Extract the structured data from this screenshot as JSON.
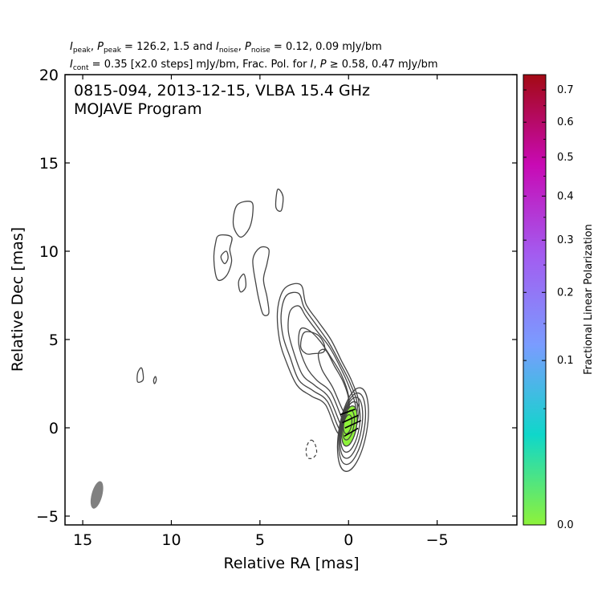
{
  "header": {
    "line1": [
      {
        "t": "I",
        "i": true
      },
      {
        "t": "peak",
        "sub": true
      },
      {
        "t": ", "
      },
      {
        "t": "P",
        "i": true
      },
      {
        "t": "peak",
        "sub": true
      },
      {
        "t": " = 126.2, 1.5 and "
      },
      {
        "t": "I",
        "i": true
      },
      {
        "t": "noise",
        "sub": true
      },
      {
        "t": ", "
      },
      {
        "t": "P",
        "i": true
      },
      {
        "t": "noise",
        "sub": true
      },
      {
        "t": " = 0.12, 0.09 mJy/bm"
      }
    ],
    "line2": [
      {
        "t": "I",
        "i": true
      },
      {
        "t": "cont",
        "sub": true
      },
      {
        "t": " = 0.35 [x2.0 steps] mJy/bm, Frac. Pol. for "
      },
      {
        "t": "I",
        "i": true
      },
      {
        "t": ", "
      },
      {
        "t": "P",
        "i": true
      },
      {
        "t": " ≥  0.58, 0.47 mJy/bm"
      }
    ]
  },
  "chart_data": {
    "type": "contour",
    "annotation_lines": [
      "0815-094, 2013-12-15, VLBA 15.4 GHz",
      "MOJAVE Program"
    ],
    "xlabel": "Relative RA [mas]",
    "ylabel": "Relative Dec [mas]",
    "xlim": [
      16,
      -9.5
    ],
    "ylim": [
      -5.5,
      20
    ],
    "xticks": [
      15,
      10,
      5,
      0,
      -5
    ],
    "xtick_labels": [
      "15",
      "10",
      "5",
      "0",
      "−5"
    ],
    "yticks": [
      -5,
      0,
      5,
      10,
      15,
      20
    ],
    "ytick_labels": [
      "−5",
      "0",
      "5",
      "10",
      "15",
      "20"
    ],
    "core": {
      "x": 0,
      "y": 0
    },
    "core_contours": [
      {
        "x": 0.05,
        "y": 0.2,
        "a": 0.22,
        "b": 0.55
      },
      {
        "x": 0.0,
        "y": 0.15,
        "a": 0.3,
        "b": 0.85
      },
      {
        "x": -0.05,
        "y": 0.1,
        "a": 0.4,
        "b": 1.15
      },
      {
        "x": -0.1,
        "y": 0.05,
        "a": 0.5,
        "b": 1.45
      },
      {
        "x": -0.15,
        "y": 0.0,
        "a": 0.58,
        "b": 1.75
      },
      {
        "x": -0.2,
        "y": -0.05,
        "a": 0.68,
        "b": 2.05
      },
      {
        "x": -0.25,
        "y": -0.1,
        "a": 0.78,
        "b": 2.4
      }
    ],
    "jet_contours": [
      [
        [
          0.6,
          -0.3
        ],
        [
          1.3,
          1.3
        ],
        [
          2.1,
          1.8
        ],
        [
          2.9,
          2.4
        ],
        [
          3.5,
          3.7
        ],
        [
          3.9,
          5.0
        ],
        [
          4.0,
          6.7
        ],
        [
          3.6,
          7.9
        ],
        [
          2.7,
          8.1
        ],
        [
          2.4,
          7.0
        ],
        [
          1.7,
          6.0
        ],
        [
          1.0,
          5.0
        ],
        [
          0.4,
          3.8
        ],
        [
          -0.2,
          2.6
        ],
        [
          -0.6,
          1.2
        ],
        [
          -0.2,
          -0.5
        ]
      ],
      [
        [
          0.5,
          -0.1
        ],
        [
          1.2,
          1.5
        ],
        [
          2.0,
          2.1
        ],
        [
          2.8,
          2.7
        ],
        [
          3.3,
          4.0
        ],
        [
          3.7,
          5.2
        ],
        [
          3.8,
          6.5
        ],
        [
          3.5,
          7.5
        ],
        [
          2.8,
          7.6
        ],
        [
          2.5,
          6.8
        ],
        [
          1.8,
          5.8
        ],
        [
          1.1,
          4.8
        ],
        [
          0.5,
          3.7
        ],
        [
          -0.1,
          2.5
        ],
        [
          -0.5,
          1.2
        ],
        [
          -0.1,
          -0.3
        ]
      ],
      [
        [
          0.4,
          0.1
        ],
        [
          1.1,
          1.7
        ],
        [
          1.9,
          2.4
        ],
        [
          2.6,
          3.0
        ],
        [
          3.1,
          4.3
        ],
        [
          3.4,
          5.5
        ],
        [
          3.3,
          6.6
        ],
        [
          2.8,
          6.9
        ],
        [
          2.4,
          6.3
        ],
        [
          1.8,
          5.5
        ],
        [
          1.1,
          4.6
        ],
        [
          0.5,
          3.5
        ],
        [
          0.0,
          2.4
        ],
        [
          -0.4,
          1.1
        ],
        [
          0.0,
          -0.1
        ]
      ],
      [
        [
          0.3,
          0.4
        ],
        [
          1.0,
          2.0
        ],
        [
          1.8,
          2.7
        ],
        [
          2.4,
          3.5
        ],
        [
          2.8,
          4.7
        ],
        [
          2.7,
          5.6
        ],
        [
          2.2,
          5.5
        ],
        [
          1.6,
          4.9
        ],
        [
          1.0,
          4.0
        ],
        [
          0.4,
          3.0
        ],
        [
          0.0,
          1.8
        ],
        [
          0.0,
          0.5
        ]
      ],
      [
        [
          0.2,
          0.8
        ],
        [
          0.9,
          2.3
        ],
        [
          1.5,
          3.3
        ],
        [
          1.7,
          4.2
        ],
        [
          1.3,
          4.4
        ],
        [
          0.8,
          3.5
        ],
        [
          0.3,
          2.6
        ],
        [
          0.0,
          1.6
        ]
      ]
    ],
    "inner_blob": [
      [
        2.7,
        4.6
      ],
      [
        2.5,
        5.4
      ],
      [
        1.8,
        5.3
      ],
      [
        1.4,
        4.8
      ],
      [
        1.4,
        4.3
      ],
      [
        2.0,
        4.2
      ],
      [
        2.4,
        4.2
      ]
    ],
    "islands": [
      [
        [
          6.5,
          11.5
        ],
        [
          6.3,
          12.6
        ],
        [
          5.5,
          12.8
        ],
        [
          5.4,
          12.2
        ],
        [
          5.6,
          11.3
        ],
        [
          6.1,
          10.8
        ]
      ],
      [
        [
          4.0,
          13.5
        ],
        [
          3.7,
          13.1
        ],
        [
          3.8,
          12.3
        ],
        [
          4.1,
          12.5
        ]
      ],
      [
        [
          7.3,
          10.9
        ],
        [
          6.6,
          10.8
        ],
        [
          6.7,
          10.1
        ],
        [
          6.6,
          9.4
        ],
        [
          6.9,
          8.6
        ],
        [
          7.4,
          8.4
        ],
        [
          7.6,
          9.5
        ],
        [
          7.5,
          10.5
        ]
      ],
      [
        [
          5.0,
          10.2
        ],
        [
          5.4,
          9.5
        ],
        [
          5.2,
          8.0
        ],
        [
          5.0,
          7.0
        ],
        [
          4.8,
          6.4
        ],
        [
          4.5,
          6.5
        ],
        [
          4.6,
          7.4
        ],
        [
          4.8,
          8.4
        ],
        [
          4.6,
          9.3
        ],
        [
          4.5,
          10.1
        ]
      ],
      [
        [
          6.9,
          10.0
        ],
        [
          7.2,
          9.7
        ],
        [
          7.0,
          9.3
        ],
        [
          6.8,
          9.6
        ]
      ],
      [
        [
          5.9,
          8.7
        ],
        [
          6.2,
          8.3
        ],
        [
          6.1,
          7.7
        ],
        [
          5.8,
          8.0
        ]
      ],
      [
        [
          11.7,
          3.4
        ],
        [
          11.9,
          3.1
        ],
        [
          11.9,
          2.6
        ],
        [
          11.6,
          2.7
        ],
        [
          11.6,
          3.1
        ]
      ],
      [
        [
          10.9,
          2.9
        ],
        [
          11.0,
          2.7
        ],
        [
          10.95,
          2.5
        ],
        [
          10.85,
          2.7
        ]
      ]
    ],
    "negative_contour": [
      [
        2.1,
        -0.7
      ],
      [
        1.9,
        -0.9
      ],
      [
        1.8,
        -1.4
      ],
      [
        2.0,
        -1.7
      ],
      [
        2.3,
        -1.7
      ],
      [
        2.4,
        -1.3
      ],
      [
        2.3,
        -0.9
      ]
    ],
    "polarization_vectors": [
      {
        "x": 0.05,
        "y": 0.9,
        "angle": 20,
        "len": 0.9
      },
      {
        "x": -0.1,
        "y": 0.5,
        "angle": 25,
        "len": 1.0
      },
      {
        "x": -0.25,
        "y": 0.2,
        "angle": 25,
        "len": 1.0
      },
      {
        "x": -0.15,
        "y": -0.25,
        "angle": 30,
        "len": 0.9
      }
    ],
    "beam": {
      "x": 14.2,
      "y": -3.8,
      "major": 1.6,
      "minor": 0.6,
      "pa": 15
    },
    "colorbar": {
      "label": "Fractional Linear Polarization",
      "range": [
        0,
        0.75
      ],
      "scale": "sqrt",
      "ticks": [
        0.0,
        0.1,
        0.2,
        0.3,
        0.4,
        0.5,
        0.6,
        0.7
      ],
      "tick_labels": [
        "0.0",
        "0.1",
        "0.2",
        "0.3",
        "0.4",
        "0.5",
        "0.6",
        "0.7"
      ],
      "colors": [
        "#8ef23a",
        "#0fd7ca",
        "#7a9cff",
        "#a35cf0",
        "#c80ab4",
        "#a30a14"
      ]
    },
    "fill_color": "#8ef23a",
    "contour_color": "#444444",
    "grid": false
  }
}
